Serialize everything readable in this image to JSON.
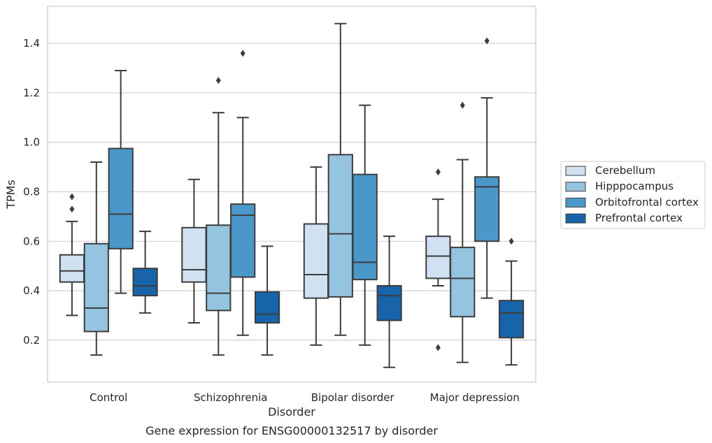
{
  "chart_data": {
    "type": "box",
    "caption": "Gene expression for ENSG00000132517 by disorder",
    "xlabel": "Disorder",
    "ylabel": "TPMs",
    "ylim": [
      0.03,
      1.55
    ],
    "yticks": [
      0.2,
      0.4,
      0.6,
      0.8,
      1.0,
      1.2,
      1.4
    ],
    "ytick_labels": [
      "0.2",
      "0.4",
      "0.6",
      "0.8",
      "1.0",
      "1.2",
      "1.4"
    ],
    "grid": "horizontal",
    "legend_position": "right",
    "categories": [
      "Control",
      "Schizophrenia",
      "Bipolar disorder",
      "Major depression"
    ],
    "series": [
      {
        "name": "Cerebellum",
        "color": "#d0e1f2",
        "boxes": [
          {
            "whisker_low": 0.3,
            "q1": 0.435,
            "median": 0.48,
            "q3": 0.545,
            "whisker_high": 0.68,
            "outliers": [
              0.73,
              0.78
            ]
          },
          {
            "whisker_low": 0.27,
            "q1": 0.435,
            "median": 0.485,
            "q3": 0.655,
            "whisker_high": 0.85,
            "outliers": []
          },
          {
            "whisker_low": 0.18,
            "q1": 0.37,
            "median": 0.465,
            "q3": 0.67,
            "whisker_high": 0.9,
            "outliers": []
          },
          {
            "whisker_low": 0.42,
            "q1": 0.45,
            "median": 0.54,
            "q3": 0.62,
            "whisker_high": 0.77,
            "outliers": [
              0.17,
              0.88
            ]
          }
        ]
      },
      {
        "name": "Hipppocampus",
        "color": "#94c4df",
        "boxes": [
          {
            "whisker_low": 0.14,
            "q1": 0.235,
            "median": 0.33,
            "q3": 0.59,
            "whisker_high": 0.92,
            "outliers": []
          },
          {
            "whisker_low": 0.14,
            "q1": 0.32,
            "median": 0.39,
            "q3": 0.665,
            "whisker_high": 1.12,
            "outliers": [
              1.25
            ]
          },
          {
            "whisker_low": 0.22,
            "q1": 0.375,
            "median": 0.63,
            "q3": 0.95,
            "whisker_high": 1.48,
            "outliers": []
          },
          {
            "whisker_low": 0.11,
            "q1": 0.295,
            "median": 0.45,
            "q3": 0.575,
            "whisker_high": 0.93,
            "outliers": [
              1.15
            ]
          }
        ]
      },
      {
        "name": "Orbitofrontal cortex",
        "color": "#4a98c9",
        "boxes": [
          {
            "whisker_low": 0.39,
            "q1": 0.57,
            "median": 0.71,
            "q3": 0.975,
            "whisker_high": 1.29,
            "outliers": []
          },
          {
            "whisker_low": 0.22,
            "q1": 0.455,
            "median": 0.705,
            "q3": 0.75,
            "whisker_high": 1.1,
            "outliers": [
              1.36
            ]
          },
          {
            "whisker_low": 0.18,
            "q1": 0.445,
            "median": 0.515,
            "q3": 0.87,
            "whisker_high": 1.15,
            "outliers": []
          },
          {
            "whisker_low": 0.37,
            "q1": 0.6,
            "median": 0.82,
            "q3": 0.86,
            "whisker_high": 1.18,
            "outliers": [
              1.41
            ]
          }
        ]
      },
      {
        "name": "Prefrontal cortex",
        "color": "#1764ab",
        "boxes": [
          {
            "whisker_low": 0.31,
            "q1": 0.38,
            "median": 0.42,
            "q3": 0.49,
            "whisker_high": 0.64,
            "outliers": []
          },
          {
            "whisker_low": 0.14,
            "q1": 0.27,
            "median": 0.305,
            "q3": 0.395,
            "whisker_high": 0.58,
            "outliers": []
          },
          {
            "whisker_low": 0.09,
            "q1": 0.28,
            "median": 0.38,
            "q3": 0.42,
            "whisker_high": 0.62,
            "outliers": []
          },
          {
            "whisker_low": 0.1,
            "q1": 0.21,
            "median": 0.31,
            "q3": 0.36,
            "whisker_high": 0.52,
            "outliers": [
              0.6
            ]
          }
        ]
      }
    ]
  }
}
